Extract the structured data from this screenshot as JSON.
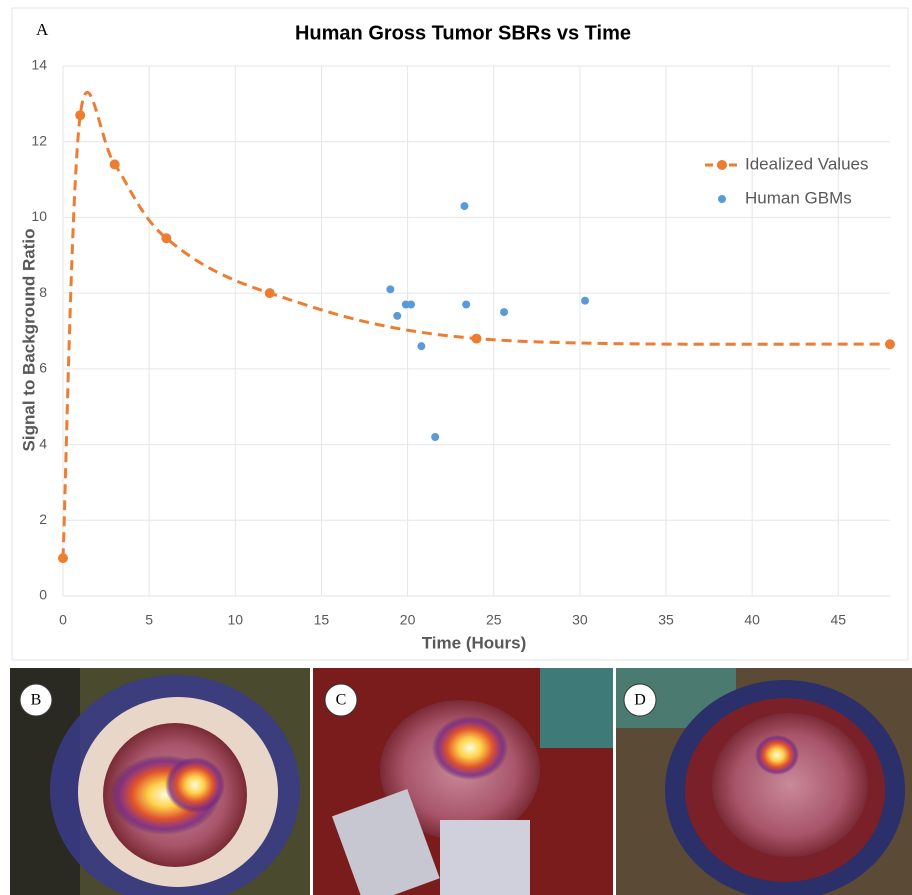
{
  "chart_data": {
    "type": "line",
    "panel_label": "A",
    "title": "Human Gross Tumor SBRs vs Time",
    "x_label": "Time (Hours)",
    "y_label": "Signal to Background Ratio",
    "xlim": [
      0,
      48
    ],
    "xticks": [
      0,
      5,
      10,
      15,
      20,
      25,
      30,
      35,
      40,
      45
    ],
    "ylim": [
      0,
      14
    ],
    "yticks": [
      0,
      2,
      4,
      6,
      8,
      10,
      12,
      14
    ],
    "grid": true,
    "legend": "right",
    "series": [
      {
        "name": "Idealized Values",
        "type": "line",
        "dashed": true,
        "color": "#ed7d31",
        "x": [
          0,
          1,
          3,
          6,
          12,
          24,
          48
        ],
        "values": [
          1,
          12.7,
          11.4,
          9.45,
          8.0,
          6.8,
          6.65
        ]
      },
      {
        "name": "Human GBMs",
        "type": "scatter",
        "color": "#5b9bd5",
        "x": [
          19,
          19.4,
          19.9,
          20.2,
          20.8,
          21.6,
          23.3,
          23.4,
          25.6,
          30.3
        ],
        "values": [
          8.1,
          7.4,
          7.7,
          7.7,
          6.6,
          4.2,
          10.3,
          7.7,
          7.5,
          7.8
        ]
      }
    ]
  },
  "photos": [
    {
      "label": "B"
    },
    {
      "label": "C"
    },
    {
      "label": "D"
    }
  ]
}
